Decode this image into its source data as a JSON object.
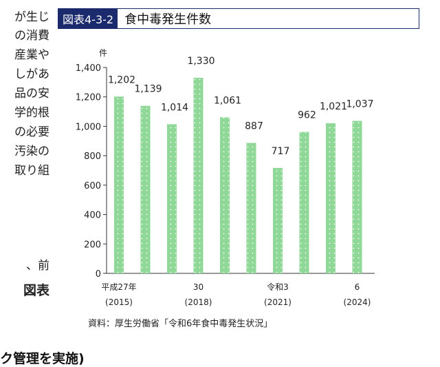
{
  "left_text": [
    "が生じ",
    "の消費",
    "産業や",
    "しがあ",
    "品の安",
    "学的根",
    "の必要",
    "汚染の",
    "取り組",
    "",
    "、前",
    "図表"
  ],
  "figure": {
    "number": "図表4-3-2",
    "title": "食中毒発生件数"
  },
  "colors": {
    "bar": "#8fd898",
    "dot": "#ffffff",
    "title_bg": "#1a2a6c"
  },
  "chart_data": {
    "type": "bar",
    "title": "食中毒発生件数",
    "ylabel": "件",
    "ylim": [
      0,
      1400
    ],
    "yticks": [
      "0",
      "200",
      "400",
      "600",
      "800",
      "1,000",
      "1,200",
      "1,400"
    ],
    "categories": [
      "平成27年 (2015)",
      "",
      "",
      "30 (2018)",
      "",
      "",
      "令和3 (2021)",
      "",
      "",
      "6 (2024)"
    ],
    "values": [
      1202,
      1139,
      1014,
      1330,
      1061,
      887,
      717,
      962,
      1021,
      1037
    ],
    "value_labels": [
      "1,202",
      "1,139",
      "1,014",
      "1,330",
      "1,061",
      "887",
      "717",
      "962",
      "1,021",
      "1,037"
    ],
    "xtick_labels": [
      {
        "index": 0,
        "line1": "平成27年",
        "line2": "(2015)"
      },
      {
        "index": 3,
        "line1": "30",
        "line2": "(2018)"
      },
      {
        "index": 6,
        "line1": "令和3",
        "line2": "(2021)"
      },
      {
        "index": 9,
        "line1": "6",
        "line2": "(2024)"
      }
    ],
    "grid": false,
    "legend": "none"
  },
  "source": "資料：厚生労働省「令和6年食中毒発生状況」",
  "bottom_heading": "ク管理を実施)"
}
